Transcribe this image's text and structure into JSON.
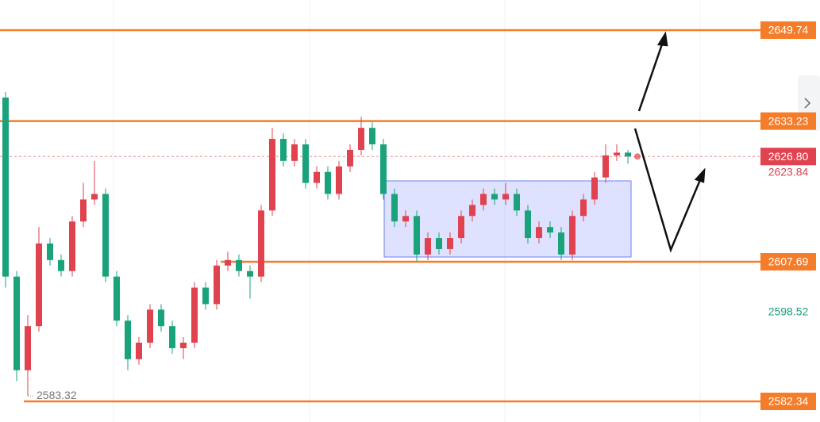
{
  "chart_data": {
    "type": "candlestick",
    "ylim": [
      2578.6,
      2655.21
    ],
    "up_color": "#e0424f",
    "down_color": "#1aa37a",
    "open": [
      2637.5,
      2605,
      2588,
      2596,
      2611,
      2608,
      2606,
      2615,
      2619,
      2620,
      2605,
      2597,
      2590,
      2593,
      2599,
      2596,
      2592,
      2593,
      2603,
      2600,
      2607,
      2608,
      2606,
      2605,
      2617,
      2630,
      2626,
      2629,
      2622,
      2624,
      2620,
      2625,
      2628,
      2632,
      2629,
      2620,
      2615,
      2616,
      2609,
      2612,
      2610,
      2612,
      2616,
      2618,
      2620,
      2619,
      2620,
      2617,
      2612,
      2614,
      2613,
      2609,
      2616,
      2619,
      2623,
      2627,
      2627.5
    ],
    "high": [
      2638.5,
      2606,
      2598,
      2614,
      2612,
      2609,
      2616,
      2622,
      2626,
      2621,
      2606,
      2598,
      2594,
      2600,
      2600,
      2597,
      2594,
      2604,
      2604,
      2608,
      2609.5,
      2609,
      2607,
      2618,
      2632,
      2631,
      2630,
      2630,
      2625,
      2625,
      2626,
      2629,
      2634,
      2633,
      2630,
      2621,
      2617,
      2617,
      2613,
      2613,
      2613,
      2617,
      2619,
      2621,
      2621,
      2622,
      2621,
      2618,
      2615,
      2615,
      2614,
      2617,
      2620,
      2624,
      2629,
      2629,
      2628
    ],
    "low": [
      2603,
      2586,
      2583.32,
      2595,
      2607,
      2605,
      2605,
      2614,
      2618,
      2604,
      2596,
      2588,
      2589,
      2592,
      2595,
      2591,
      2590,
      2592,
      2599,
      2599,
      2606,
      2605,
      2601,
      2604,
      2616,
      2625,
      2625,
      2621,
      2621,
      2619,
      2619,
      2624,
      2627,
      2628,
      2619,
      2614,
      2614,
      2607.8,
      2608,
      2609,
      2609,
      2611,
      2615,
      2617,
      2618,
      2618,
      2616,
      2611,
      2611,
      2612,
      2608,
      2608,
      2615,
      2618,
      2622,
      2626,
      2625.5
    ],
    "close": [
      2605,
      2588,
      2596,
      2611,
      2608,
      2606,
      2615,
      2619,
      2620,
      2605,
      2597,
      2590,
      2593,
      2599,
      2596,
      2592,
      2593,
      2603,
      2600,
      2607,
      2608,
      2606,
      2605,
      2617,
      2630,
      2626,
      2629,
      2622,
      2624,
      2620,
      2625,
      2628,
      2632,
      2629,
      2620,
      2615,
      2616,
      2609,
      2612,
      2610,
      2612,
      2616,
      2618,
      2620,
      2619,
      2620,
      2617,
      2612,
      2614,
      2613,
      2609,
      2616,
      2619,
      2623,
      2627,
      2627.5,
      2626.8
    ],
    "levels": [
      {
        "value": 2649.74,
        "color": "#f57c28"
      },
      {
        "value": 2633.23,
        "color": "#f57c28"
      },
      {
        "value": 2607.69,
        "color": "#f57c28"
      },
      {
        "value": 2582.34,
        "color": "#f57c28"
      }
    ],
    "current_price": {
      "value": 2626.8,
      "label": "2626.80",
      "color": "#e0424f"
    },
    "price_labels": [
      {
        "value": 2623.84,
        "color": "#e0424f"
      },
      {
        "value": 2598.52,
        "color": "#1a9e7a"
      }
    ],
    "low_marker": {
      "value": 2583.32
    }
  }
}
